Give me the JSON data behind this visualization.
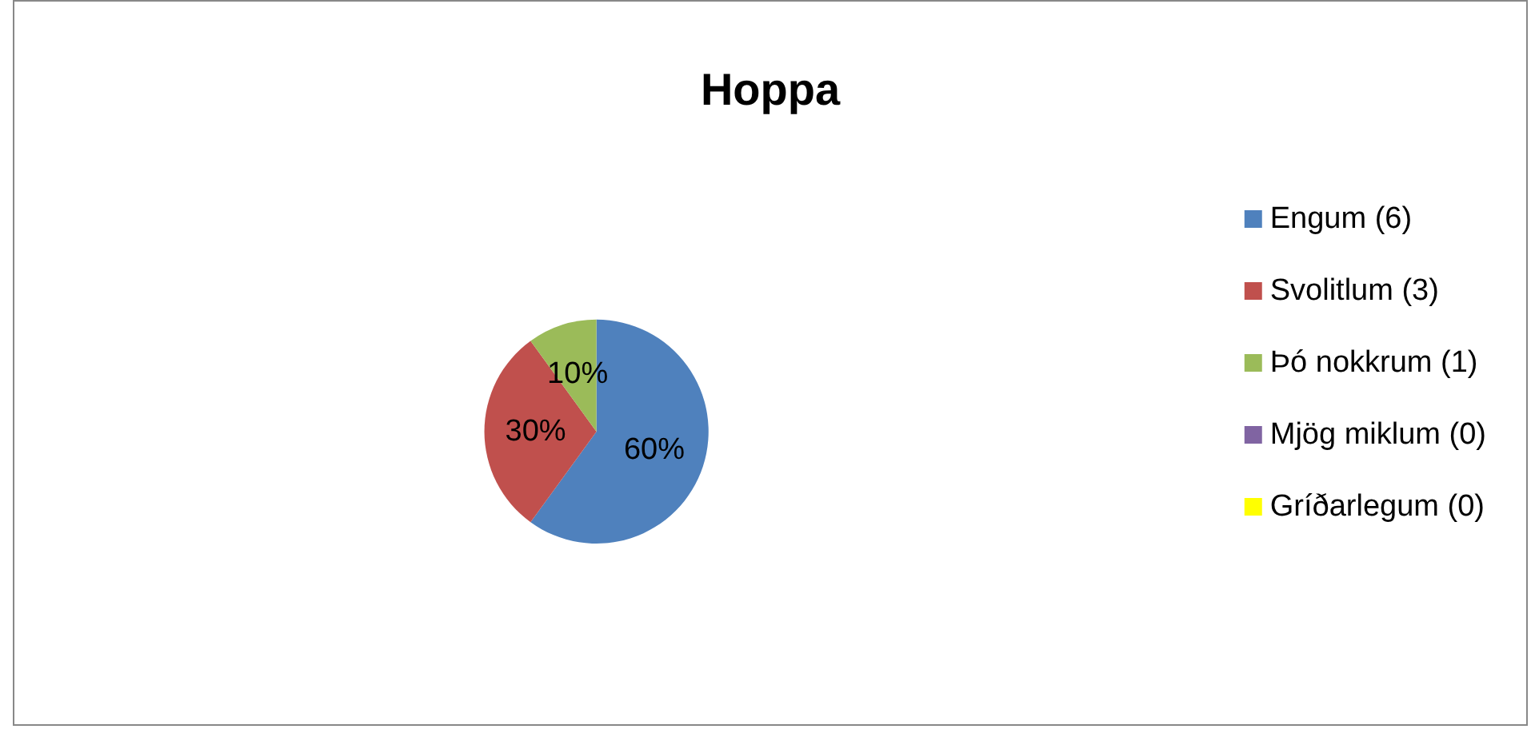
{
  "chart_data": {
    "type": "pie",
    "title": "Hoppa",
    "categories": [
      "Engum (6)",
      "Svolitlum (3)",
      "Þó nokkrum (1)",
      "Mjög miklum (0)",
      "Gríðarlegum (0)"
    ],
    "values": [
      60,
      30,
      10,
      0,
      0
    ],
    "colors": [
      "#4f81bd",
      "#c0504d",
      "#9bbb59",
      "#8064a2",
      "#ffff00"
    ],
    "value_labels": [
      "60%",
      "30%",
      "10%",
      null,
      null
    ],
    "legend": "right"
  }
}
